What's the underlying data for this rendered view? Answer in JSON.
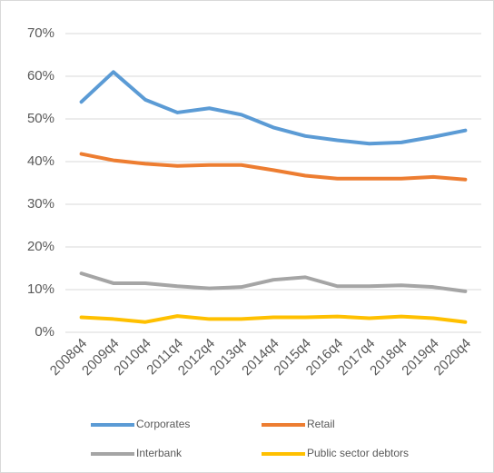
{
  "chart_data": {
    "type": "line",
    "categories": [
      "2008q4",
      "2009q4",
      "2010q4",
      "2011q4",
      "2012q4",
      "2013q4",
      "2014q4",
      "2015q4",
      "2016q4",
      "2017q4",
      "2018q4",
      "2019q4",
      "2020q4"
    ],
    "series": [
      {
        "name": "Corporates",
        "color": "#5b9bd5",
        "values": [
          54,
          61,
          54.5,
          51.5,
          52.5,
          51,
          48,
          46,
          45,
          44.2,
          44.5,
          45.8,
          47.3
        ]
      },
      {
        "name": "Retail",
        "color": "#ed7d31",
        "values": [
          41.8,
          40.3,
          39.5,
          39,
          39.2,
          39.2,
          38,
          36.7,
          36,
          36,
          36,
          36.4,
          35.8
        ]
      },
      {
        "name": "Interbank",
        "color": "#a5a5a5",
        "values": [
          13.8,
          11.5,
          11.5,
          10.8,
          10.3,
          10.6,
          12.3,
          12.9,
          10.8,
          10.8,
          11,
          10.6,
          9.6
        ]
      },
      {
        "name": "Public sector debtors",
        "color": "#ffc000",
        "values": [
          3.5,
          3.1,
          2.4,
          3.8,
          3.1,
          3.1,
          3.5,
          3.5,
          3.7,
          3.3,
          3.7,
          3.3,
          2.4
        ]
      }
    ],
    "ylim": [
      0,
      70
    ],
    "yticks": [
      {
        "value": 0,
        "label": "0%"
      },
      {
        "value": 10,
        "label": "10%"
      },
      {
        "value": 20,
        "label": "20%"
      },
      {
        "value": 30,
        "label": "30%"
      },
      {
        "value": 40,
        "label": "40%"
      },
      {
        "value": 50,
        "label": "50%"
      },
      {
        "value": 60,
        "label": "60%"
      },
      {
        "value": 70,
        "label": "70%"
      }
    ],
    "grid": true,
    "legend": "bottom"
  }
}
